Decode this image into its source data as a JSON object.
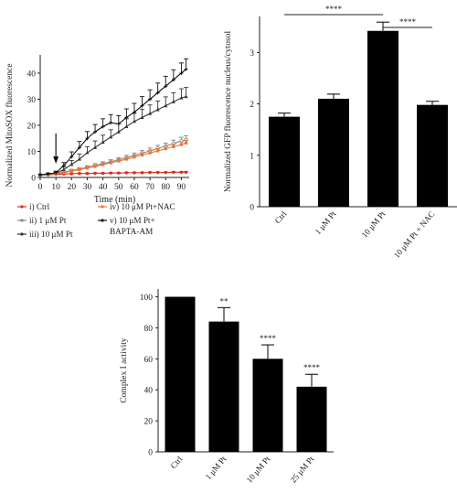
{
  "chart_data": [
    {
      "type": "line",
      "xlabel": "Time (min)",
      "ylabel": "Normalized MitoSOX fluorescence",
      "xlim": [
        0,
        95
      ],
      "ylim": [
        0,
        47
      ],
      "xticks": [
        0,
        10,
        20,
        30,
        40,
        50,
        60,
        70,
        80,
        90
      ],
      "yticks": [
        0,
        10,
        20,
        30,
        40
      ],
      "annotation": "arrow at 10 min",
      "legend_position": "below",
      "series": [
        {
          "name": "i) Ctrl",
          "color": "#d7301f",
          "marker": "circle",
          "x": [
            0,
            5,
            10,
            15,
            20,
            25,
            30,
            35,
            40,
            45,
            50,
            55,
            60,
            65,
            70,
            75,
            80,
            85,
            90,
            93
          ],
          "y": [
            1,
            1,
            1.2,
            1.3,
            1.4,
            1.5,
            1.5,
            1.6,
            1.6,
            1.7,
            1.7,
            1.8,
            1.8,
            1.8,
            1.9,
            1.9,
            1.9,
            2,
            2,
            2
          ],
          "err": [
            0.2,
            0.2,
            0.2,
            0.2,
            0.2,
            0.2,
            0.2,
            0.2,
            0.2,
            0.2,
            0.2,
            0.2,
            0.2,
            0.2,
            0.2,
            0.2,
            0.2,
            0.2,
            0.2,
            0.2
          ]
        },
        {
          "name": "ii) 1 μM Pt",
          "color": "#888888",
          "marker": "circle-open",
          "x": [
            0,
            5,
            10,
            15,
            20,
            25,
            30,
            35,
            40,
            45,
            50,
            55,
            60,
            65,
            70,
            75,
            80,
            85,
            90,
            93
          ],
          "y": [
            1,
            1.2,
            1.5,
            2,
            2.6,
            3.2,
            3.9,
            4.6,
            5.3,
            6,
            6.8,
            7.6,
            8.4,
            9.3,
            10.2,
            11.1,
            12,
            13,
            14,
            14.5
          ],
          "err": [
            0.2,
            0.3,
            0.3,
            0.4,
            0.5,
            0.5,
            0.6,
            0.7,
            0.7,
            0.8,
            0.8,
            0.9,
            1,
            1,
            1.1,
            1.2,
            1.2,
            1.3,
            1.4,
            1.5
          ]
        },
        {
          "name": "iii) 10 μM Pt",
          "color": "#333333",
          "marker": "triangle",
          "x": [
            0,
            5,
            10,
            15,
            20,
            25,
            30,
            35,
            40,
            45,
            50,
            55,
            60,
            65,
            70,
            75,
            80,
            85,
            90,
            93
          ],
          "y": [
            1,
            1.2,
            1.6,
            3,
            5,
            7,
            9.5,
            11.5,
            13.5,
            15.5,
            17.5,
            19.5,
            21.5,
            23,
            24.5,
            26,
            27.5,
            29,
            30.5,
            31
          ],
          "err": [
            0.2,
            0.3,
            0.5,
            1,
            1.5,
            2,
            2.3,
            2.5,
            2.7,
            2.8,
            3,
            3,
            3.1,
            3.2,
            3.3,
            3.3,
            3.4,
            3.5,
            3.5,
            3.5
          ]
        },
        {
          "name": "iv) 10 μM Pt+NAC",
          "color": "#e8773a",
          "marker": "square",
          "x": [
            0,
            5,
            10,
            15,
            20,
            25,
            30,
            35,
            40,
            45,
            50,
            55,
            60,
            65,
            70,
            75,
            80,
            85,
            90,
            93
          ],
          "y": [
            1,
            1.1,
            1.4,
            1.8,
            2.4,
            3,
            3.6,
            4.2,
            4.9,
            5.6,
            6.3,
            7,
            7.8,
            8.6,
            9.4,
            10.2,
            11,
            11.8,
            12.6,
            13.2
          ],
          "err": [
            0.2,
            0.2,
            0.3,
            0.3,
            0.4,
            0.4,
            0.5,
            0.5,
            0.6,
            0.6,
            0.7,
            0.7,
            0.8,
            0.8,
            0.9,
            0.9,
            1,
            1,
            1.1,
            1.1
          ]
        },
        {
          "name": "v) 10 μM Pt+ BAPTA-AM",
          "color": "#111111",
          "marker": "plus",
          "x": [
            0,
            5,
            10,
            15,
            20,
            25,
            30,
            35,
            40,
            45,
            50,
            55,
            60,
            65,
            70,
            75,
            80,
            85,
            90,
            93
          ],
          "y": [
            1,
            1.3,
            1.8,
            4.5,
            8,
            11.5,
            15,
            17.5,
            19.5,
            21,
            20.5,
            23,
            25,
            27.5,
            30,
            32.5,
            35,
            37.5,
            40,
            41.5
          ],
          "err": [
            0.2,
            0.4,
            0.6,
            1.2,
            1.8,
            2.3,
            2.6,
            2.8,
            3,
            3.1,
            3.2,
            3.3,
            3.4,
            3.5,
            3.6,
            3.7,
            3.8,
            3.8,
            3.9,
            4
          ]
        }
      ]
    },
    {
      "type": "bar",
      "ylabel": "Normalized GFP fluorescence nucleus/cytosol",
      "ylim": [
        0,
        3.7
      ],
      "yticks": [
        0,
        1,
        2,
        3
      ],
      "categories": [
        "Ctrl",
        "1 μM Pt",
        "10 μM Pt",
        "10 μM Pt + NAC"
      ],
      "values": [
        1.75,
        2.1,
        3.42,
        1.98
      ],
      "errors": [
        0.07,
        0.09,
        0.17,
        0.07
      ],
      "significance": [
        {
          "from": 0,
          "to": 2,
          "label": "****"
        },
        {
          "from": 2,
          "to": 3,
          "label": "****"
        }
      ]
    },
    {
      "type": "bar",
      "ylabel": "Complex I activity",
      "ylim": [
        0,
        105
      ],
      "yticks": [
        0,
        20,
        40,
        60,
        80,
        100
      ],
      "categories": [
        "Ctrl",
        "1 μM Pt",
        "10 μM Pt",
        "25 μM Pt"
      ],
      "values": [
        100,
        84,
        60,
        42
      ],
      "errors": [
        0,
        9,
        9,
        8
      ],
      "labels": [
        "",
        "**",
        "****",
        "****"
      ]
    }
  ]
}
